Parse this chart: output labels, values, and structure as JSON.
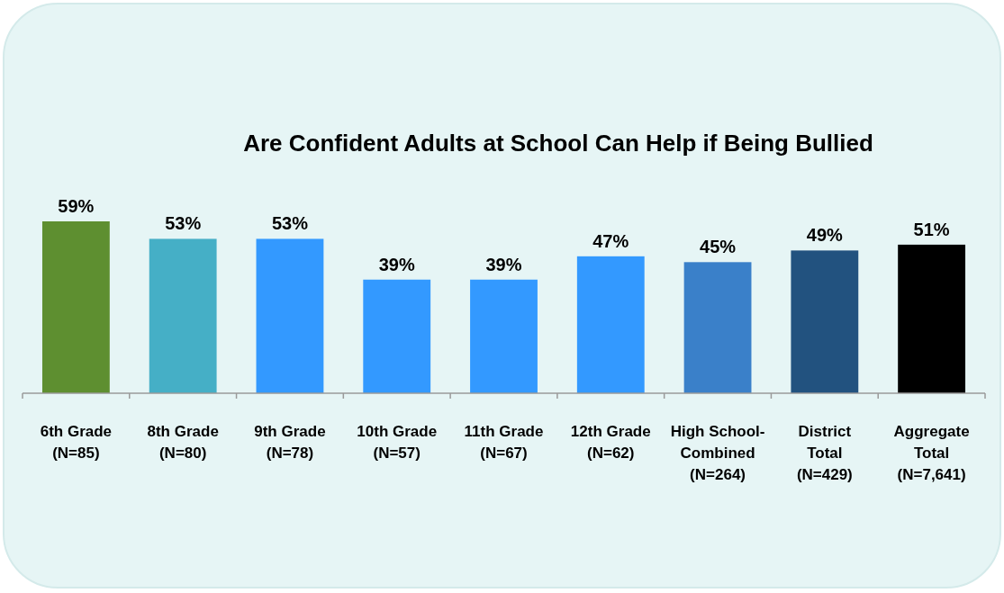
{
  "chart_data": {
    "type": "bar",
    "title": "Are Confident Adults at School Can Help if Being Bullied",
    "categories": [
      "6th Grade\n(N=85)",
      "8th Grade\n(N=80)",
      "9th Grade\n(N=78)",
      "10th Grade\n(N=57)",
      "11th Grade\n(N=67)",
      "12th Grade\n(N=62)",
      "High School-\nCombined\n(N=264)",
      "District\nTotal\n(N=429)",
      "Aggregate\nTotal\n(N=7,641)"
    ],
    "values": [
      59,
      53,
      53,
      39,
      39,
      47,
      45,
      49,
      51
    ],
    "value_labels": [
      "59%",
      "53%",
      "53%",
      "39%",
      "39%",
      "47%",
      "45%",
      "49%",
      "51%"
    ],
    "colors": [
      "#5e8f30",
      "#45afc6",
      "#3399ff",
      "#3399ff",
      "#3399ff",
      "#3399ff",
      "#3a80c9",
      "#22527f",
      "#000000"
    ],
    "data_labels": true
  }
}
